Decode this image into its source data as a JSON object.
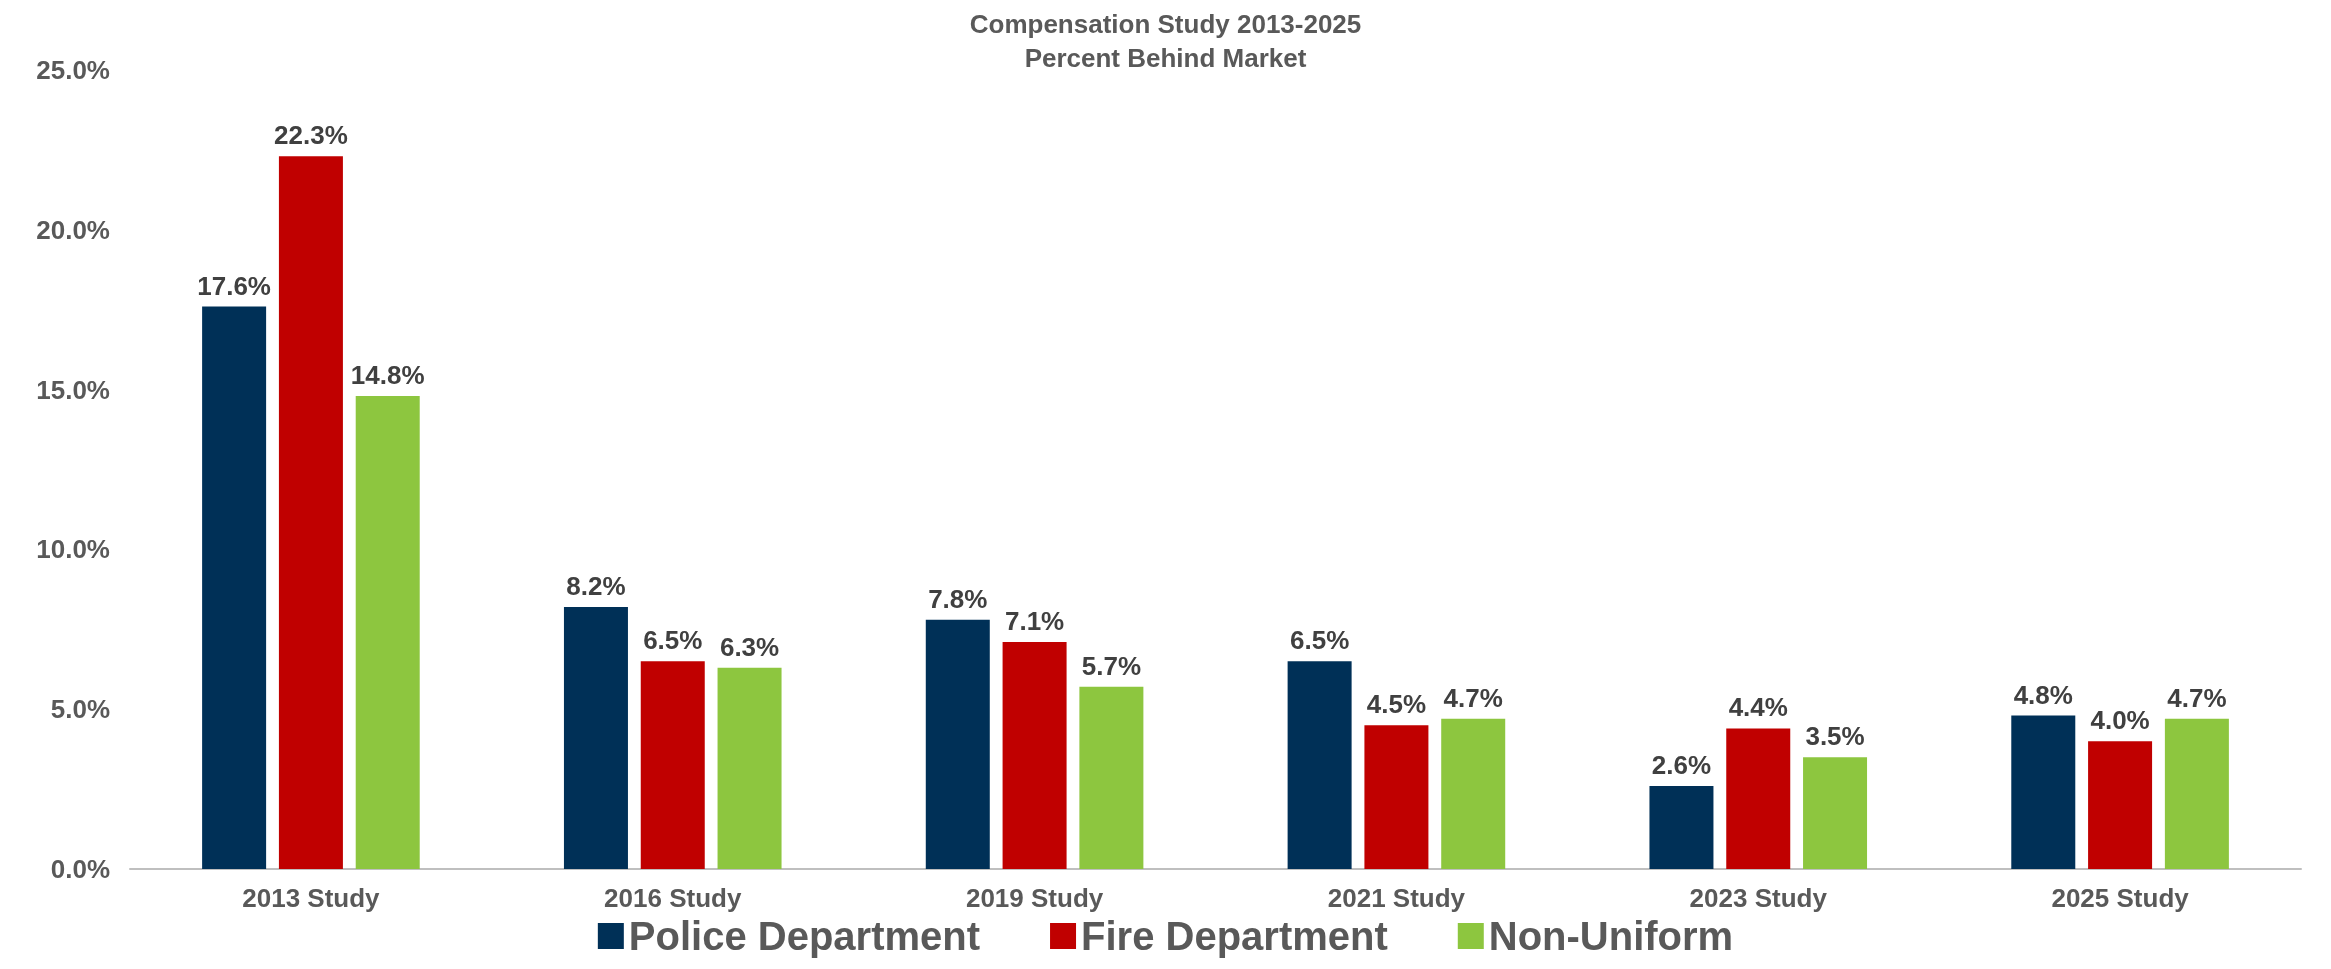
{
  "chart_data": {
    "type": "bar",
    "title": "Compensation Study 2013-2025",
    "subtitle": "Percent Behind Market",
    "categories": [
      "2013 Study",
      "2016 Study",
      "2019 Study",
      "2021 Study",
      "2023 Study",
      "2025 Study"
    ],
    "series": [
      {
        "name": "Police Department",
        "color": "#003057",
        "values": [
          17.6,
          8.2,
          7.8,
          6.5,
          2.6,
          4.8
        ],
        "value_labels": [
          "17.6%",
          "8.2%",
          "7.8%",
          "6.5%",
          "2.6%",
          "4.8%"
        ]
      },
      {
        "name": "Fire Department",
        "color": "#c00000",
        "values": [
          22.3,
          6.5,
          7.1,
          4.5,
          4.4,
          4.0
        ],
        "value_labels": [
          "22.3%",
          "6.5%",
          "7.1%",
          "4.5%",
          "4.4%",
          "4.0%"
        ]
      },
      {
        "name": "Non-Uniform",
        "color": "#8dc63f",
        "values": [
          14.8,
          6.3,
          5.7,
          4.7,
          3.5,
          4.7
        ],
        "value_labels": [
          "14.8%",
          "6.3%",
          "5.7%",
          "4.7%",
          "3.5%",
          "4.7%"
        ]
      }
    ],
    "ylim": [
      0,
      25
    ],
    "yticks": [
      {
        "value": 0,
        "label": "0.0%"
      },
      {
        "value": 5,
        "label": "5.0%"
      },
      {
        "value": 10,
        "label": "10.0%"
      },
      {
        "value": 15,
        "label": "15.0%"
      },
      {
        "value": 20,
        "label": "20.0%"
      },
      {
        "value": 25,
        "label": "25.0%"
      }
    ],
    "grid": false,
    "legend": "bottom"
  }
}
